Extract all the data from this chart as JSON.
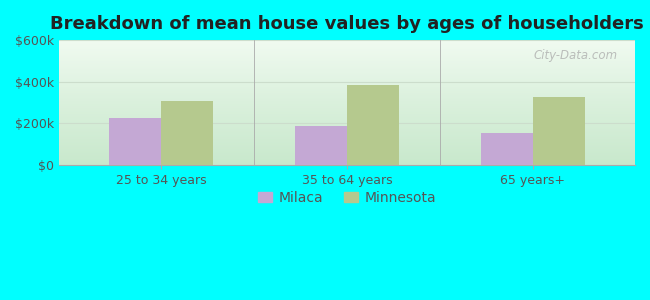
{
  "title": "Breakdown of mean house values by ages of householders",
  "categories": [
    "25 to 34 years",
    "35 to 64 years",
    "65 years+"
  ],
  "milaca_values": [
    225000,
    185000,
    155000
  ],
  "minnesota_values": [
    305000,
    385000,
    325000
  ],
  "ylim": [
    0,
    600000
  ],
  "yticks": [
    0,
    200000,
    400000,
    600000
  ],
  "ytick_labels": [
    "$0",
    "$200k",
    "$400k",
    "$600k"
  ],
  "milaca_color": "#c4a8d4",
  "minnesota_color": "#b5c98e",
  "bar_width": 0.28,
  "fig_bg_color": "#00ffff",
  "plot_bg_top": "#e8f5e9",
  "plot_bg_bottom": "#c8eacc",
  "title_fontsize": 13,
  "legend_labels": [
    "Milaca",
    "Minnesota"
  ],
  "watermark": "City-Data.com",
  "grid_color": "#ccddcc",
  "title_color": "#222222",
  "tick_color": "#555555"
}
